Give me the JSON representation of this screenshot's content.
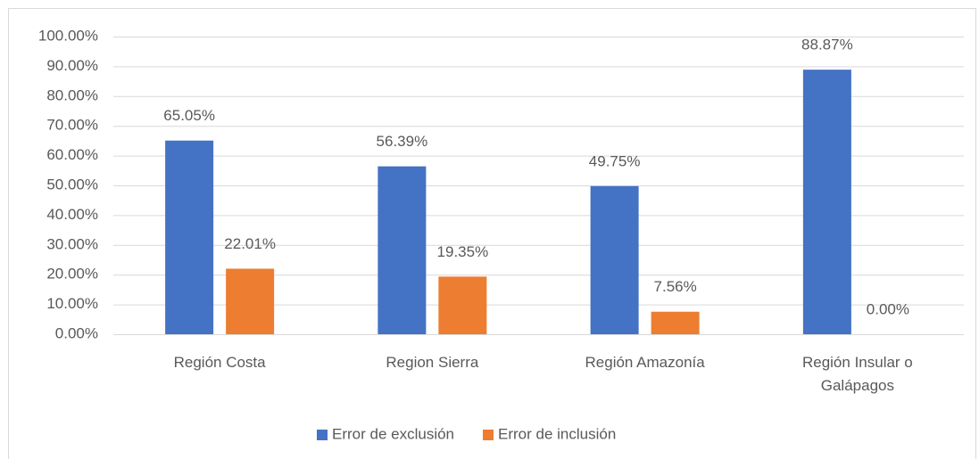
{
  "chart_data": {
    "type": "bar",
    "categories": [
      "Región Costa",
      "Region Sierra",
      "Región Amazonía",
      "Región Insular o Galápagos"
    ],
    "series": [
      {
        "name": "Error de exclusión",
        "color": "#4472c4",
        "values": [
          65.05,
          56.39,
          49.75,
          88.87
        ],
        "value_labels": [
          "65.05%",
          "56.39%",
          "49.75%",
          "88.87%"
        ]
      },
      {
        "name": "Error de inclusión",
        "color": "#ed7d31",
        "values": [
          22.01,
          19.35,
          7.56,
          0
        ],
        "value_labels": [
          "22.01%",
          "19.35%",
          "7.56%",
          "0.00%"
        ]
      }
    ],
    "ylim": [
      0,
      100
    ],
    "yticks": [
      {
        "value": 0,
        "label": "0.00%"
      },
      {
        "value": 10,
        "label": "10.00%"
      },
      {
        "value": 20,
        "label": "20.00%"
      },
      {
        "value": 30,
        "label": "30.00%"
      },
      {
        "value": 40,
        "label": "40.00%"
      },
      {
        "value": 50,
        "label": "50.00%"
      },
      {
        "value": 60,
        "label": "60.00%"
      },
      {
        "value": 70,
        "label": "70.00%"
      },
      {
        "value": 80,
        "label": "80.00%"
      },
      {
        "value": 90,
        "label": "90.00%"
      },
      {
        "value": 100,
        "label": "100.00%"
      }
    ],
    "grid": true,
    "legend": "bottom"
  }
}
